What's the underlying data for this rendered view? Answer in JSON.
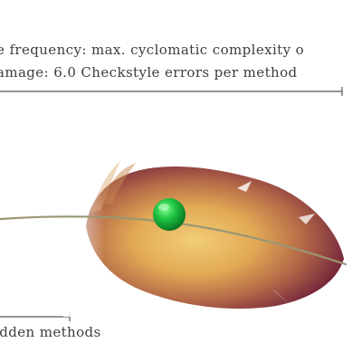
{
  "annotations": {
    "line1": "e frequency: max. cyclomatic complexity o",
    "line2": "amage: 6.0 Checkstyle errors per method",
    "bottom": "idden methods"
  },
  "colors": {
    "marker": "#12a83a",
    "feather_base": "#e6b65c",
    "feather_edge": "#7c2440",
    "rule": "#555555"
  },
  "icons": {
    "feather": "feather-glyph",
    "marker": "green-sphere"
  }
}
